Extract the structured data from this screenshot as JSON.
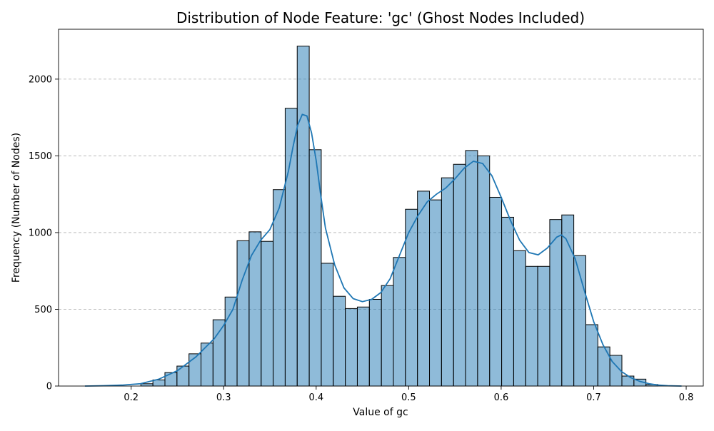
{
  "chart_data": {
    "type": "bar",
    "title": "Distribution of Node Feature: 'gc' (Ghost Nodes Included)",
    "xlabel": "Value of gc",
    "ylabel": "Frequency (Number of Nodes)",
    "xlim": [
      0.1215,
      0.8185
    ],
    "ylim": [
      0,
      2325
    ],
    "x_ticks": [
      0.2,
      0.3,
      0.4,
      0.5,
      0.6,
      0.7,
      0.8
    ],
    "x_tick_labels": [
      "0.2",
      "0.3",
      "0.4",
      "0.5",
      "0.6",
      "0.7",
      "0.8"
    ],
    "y_ticks": [
      0,
      500,
      1000,
      1500,
      2000
    ],
    "y_tick_labels": [
      "0",
      "500",
      "1000",
      "1500",
      "2000"
    ],
    "grid": "y-dashed",
    "bin_edges": [
      0.2105,
      0.2235,
      0.2365,
      0.2495,
      0.2625,
      0.2755,
      0.2885,
      0.3015,
      0.3145,
      0.3275,
      0.3405,
      0.3535,
      0.3665,
      0.3795,
      0.3925,
      0.4055,
      0.4185,
      0.4315,
      0.4445,
      0.4575,
      0.4705,
      0.4835,
      0.4965,
      0.5095,
      0.5225,
      0.5355,
      0.5485,
      0.5615,
      0.5745,
      0.5875,
      0.6005,
      0.6135,
      0.6265,
      0.6395,
      0.6525,
      0.6655,
      0.6785,
      0.6915,
      0.7045,
      0.7175,
      0.7305,
      0.7435,
      0.7565,
      0.7695
    ],
    "counts": [
      15,
      40,
      88,
      130,
      210,
      280,
      432,
      580,
      947,
      1005,
      943,
      1280,
      1810,
      2215,
      1540,
      800,
      585,
      505,
      515,
      565,
      655,
      838,
      1152,
      1270,
      1213,
      1357,
      1445,
      1535,
      1500,
      1230,
      1100,
      882,
      780,
      780,
      1085,
      1115,
      850,
      400,
      255,
      200,
      65,
      45,
      10
    ],
    "kde": {
      "x": [
        0.15,
        0.17,
        0.19,
        0.21,
        0.23,
        0.25,
        0.27,
        0.29,
        0.3,
        0.31,
        0.32,
        0.33,
        0.34,
        0.35,
        0.36,
        0.37,
        0.375,
        0.38,
        0.385,
        0.39,
        0.395,
        0.4,
        0.405,
        0.41,
        0.42,
        0.43,
        0.44,
        0.45,
        0.46,
        0.47,
        0.48,
        0.49,
        0.5,
        0.51,
        0.52,
        0.53,
        0.54,
        0.55,
        0.56,
        0.57,
        0.58,
        0.59,
        0.6,
        0.61,
        0.62,
        0.63,
        0.64,
        0.65,
        0.66,
        0.665,
        0.67,
        0.68,
        0.69,
        0.7,
        0.71,
        0.72,
        0.73,
        0.74,
        0.75,
        0.76,
        0.77,
        0.78,
        0.795
      ],
      "y": [
        0,
        2,
        6,
        15,
        45,
        100,
        190,
        310,
        395,
        500,
        690,
        850,
        950,
        1020,
        1160,
        1400,
        1560,
        1700,
        1770,
        1760,
        1650,
        1470,
        1240,
        1030,
        790,
        640,
        570,
        550,
        565,
        610,
        700,
        850,
        1000,
        1110,
        1200,
        1250,
        1290,
        1350,
        1420,
        1465,
        1450,
        1370,
        1230,
        1080,
        950,
        870,
        855,
        900,
        970,
        985,
        960,
        830,
        620,
        420,
        270,
        160,
        95,
        55,
        30,
        15,
        6,
        2,
        0
      ]
    }
  }
}
